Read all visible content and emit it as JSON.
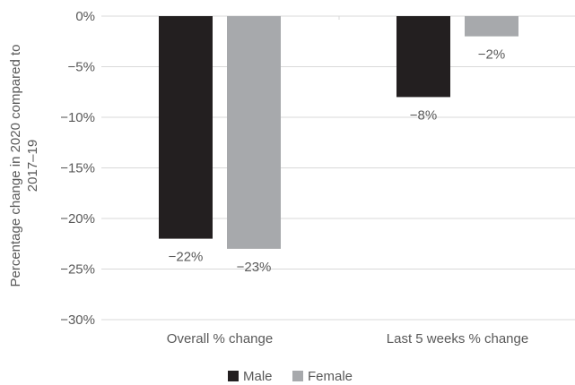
{
  "chart_data": {
    "type": "bar",
    "categories": [
      "Overall % change",
      "Last 5 weeks % change"
    ],
    "series": [
      {
        "name": "Male",
        "values": [
          -22,
          -8
        ],
        "labels": [
          "−22%",
          "−8%"
        ],
        "color": "#231f20"
      },
      {
        "name": "Female",
        "values": [
          -23,
          -2
        ],
        "labels": [
          "−23%",
          "−2%"
        ],
        "color": "#a7a9ac"
      }
    ],
    "ylabel_lines": [
      "Percentage change in 2020 compared to",
      "2017–19"
    ],
    "ylim": [
      -30,
      0
    ],
    "yticks": [
      {
        "value": 0,
        "label": "0%"
      },
      {
        "value": -5,
        "label": "−5%"
      },
      {
        "value": -10,
        "label": "−10%"
      },
      {
        "value": -15,
        "label": "−15%"
      },
      {
        "value": -20,
        "label": "−20%"
      },
      {
        "value": -25,
        "label": "−25%"
      },
      {
        "value": -30,
        "label": "−30%"
      }
    ],
    "grid": true,
    "legend_position": "bottom"
  },
  "colors": {
    "grid": "#d9d9d9",
    "text": "#595959"
  }
}
